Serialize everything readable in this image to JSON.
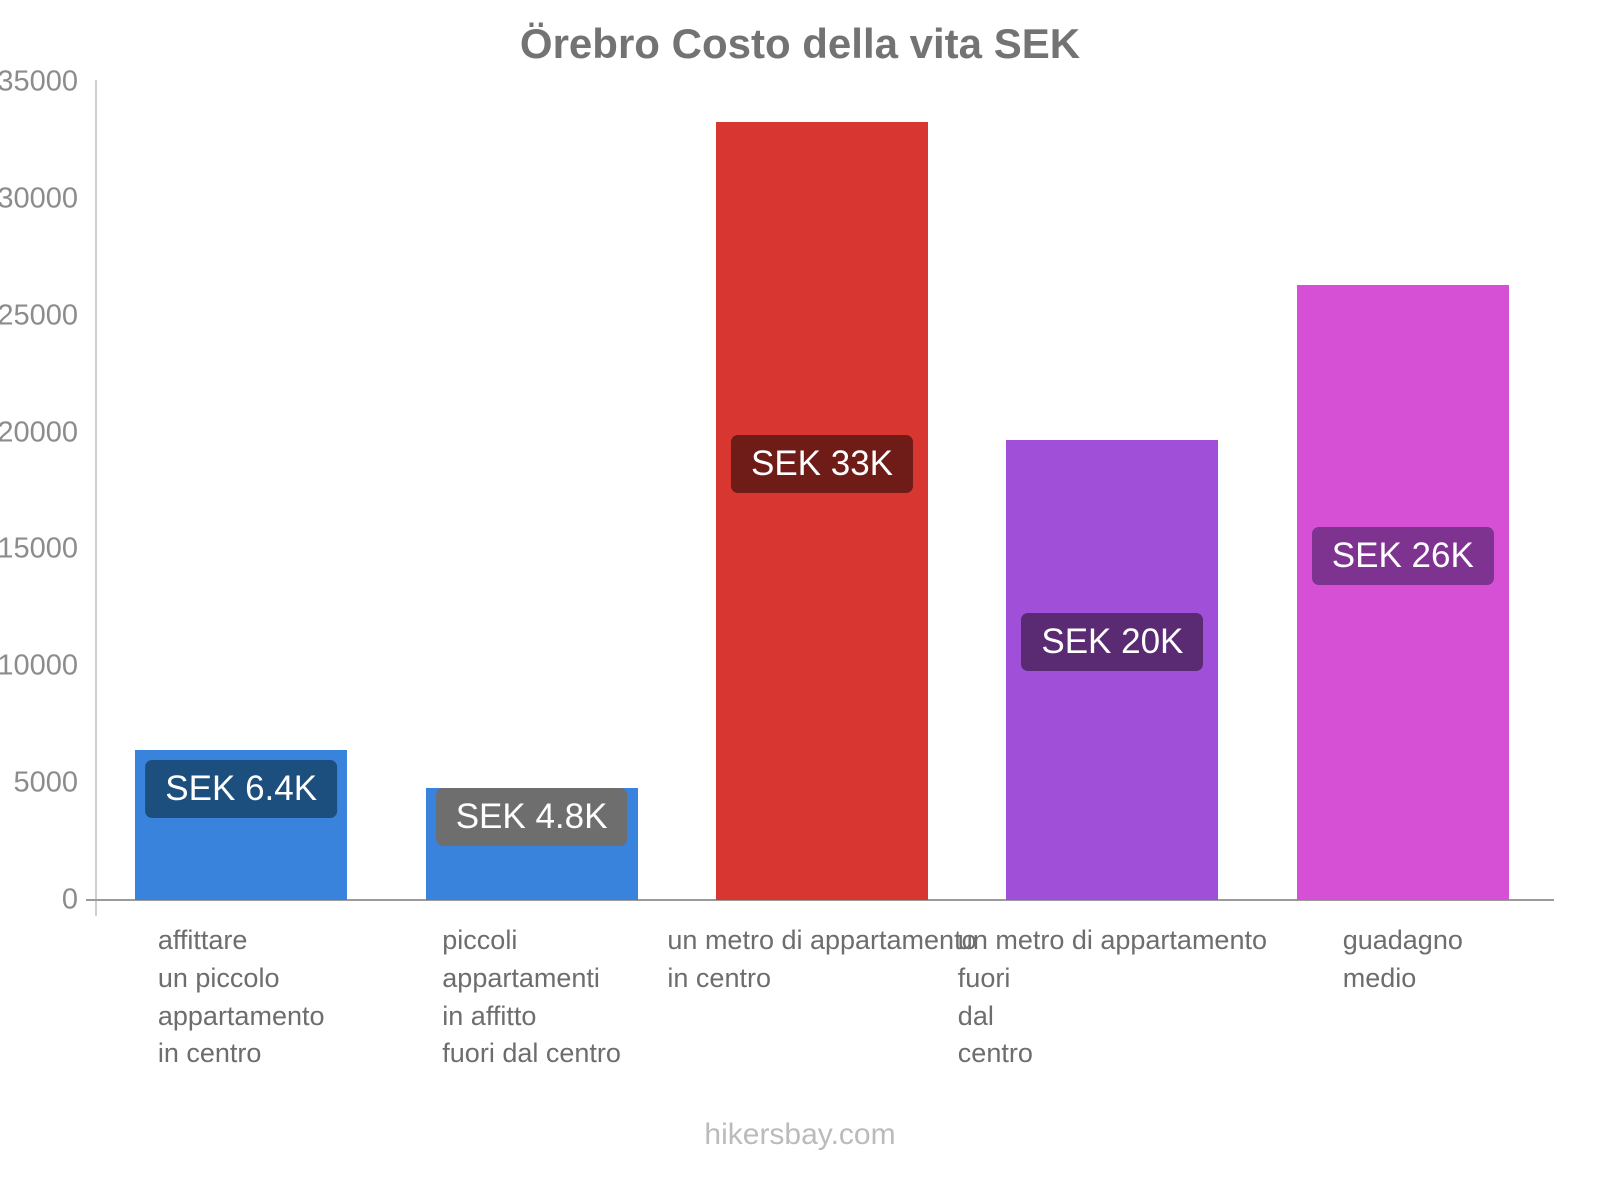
{
  "title": "Örebro Costo della vita SEK",
  "footer": "hikersbay.com",
  "chart_data": {
    "type": "bar",
    "title": "Örebro Costo della vita SEK",
    "categories": [
      "affittare\nun piccolo\nappartamento\nin centro",
      "piccoli\nappartamenti\nin affitto\nfuori dal centro",
      "un metro di appartamento\nin centro",
      "un metro di appartamento\nfuori\ndal\ncentro",
      "guadagno\nmedio"
    ],
    "values": [
      6400,
      4800,
      33300,
      19700,
      26300
    ],
    "value_labels": [
      "SEK 6.4K",
      "SEK 4.8K",
      "SEK 33K",
      "SEK 20K",
      "SEK 26K"
    ],
    "bar_colors": [
      "#3a83dc",
      "#3a83dc",
      "#d83731",
      "#a050d8",
      "#d650d6"
    ],
    "label_bg_colors": [
      "#1d4f7e",
      "#6e6e6e",
      "#6f1b17",
      "#5a2a72",
      "#7e3390"
    ],
    "xlabel": "",
    "ylabel": "",
    "ylim": [
      0,
      35000
    ],
    "yticks": [
      0,
      5000,
      10000,
      15000,
      20000,
      25000,
      30000,
      35000
    ],
    "grid": false,
    "legend": false,
    "currency": "SEK"
  }
}
